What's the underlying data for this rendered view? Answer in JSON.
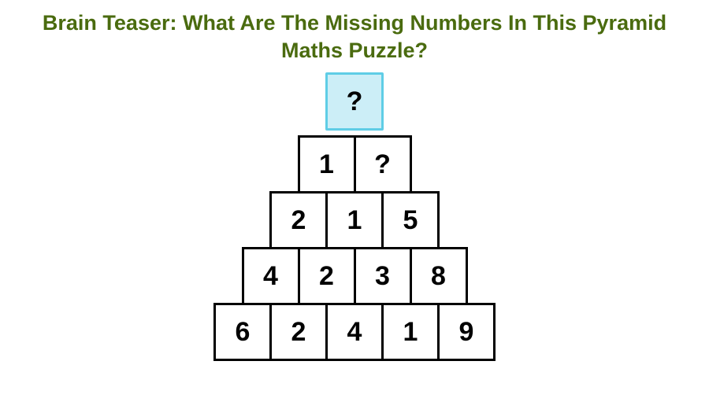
{
  "title": "Brain Teaser: What Are The Missing Numbers In This Pyramid Maths Puzzle?",
  "title_color": "#4a6b0f",
  "title_fontsize": 27,
  "pyramid": {
    "type": "pyramid-grid",
    "cell_size": 74,
    "cell_border_width": 3,
    "cell_border_color": "#000000",
    "cell_font_size": 34,
    "cell_text_color": "#000000",
    "top_cell_bg": "#cceef7",
    "top_cell_border": "#5fcde6",
    "rows": [
      {
        "values": [
          "?"
        ],
        "highlight": true
      },
      {
        "values": [
          "1",
          "?"
        ],
        "highlight": false
      },
      {
        "values": [
          "2",
          "1",
          "5"
        ],
        "highlight": false
      },
      {
        "values": [
          "4",
          "2",
          "3",
          "8"
        ],
        "highlight": false
      },
      {
        "values": [
          "6",
          "2",
          "4",
          "1",
          "9"
        ],
        "highlight": false
      }
    ]
  },
  "background_color": "#ffffff"
}
